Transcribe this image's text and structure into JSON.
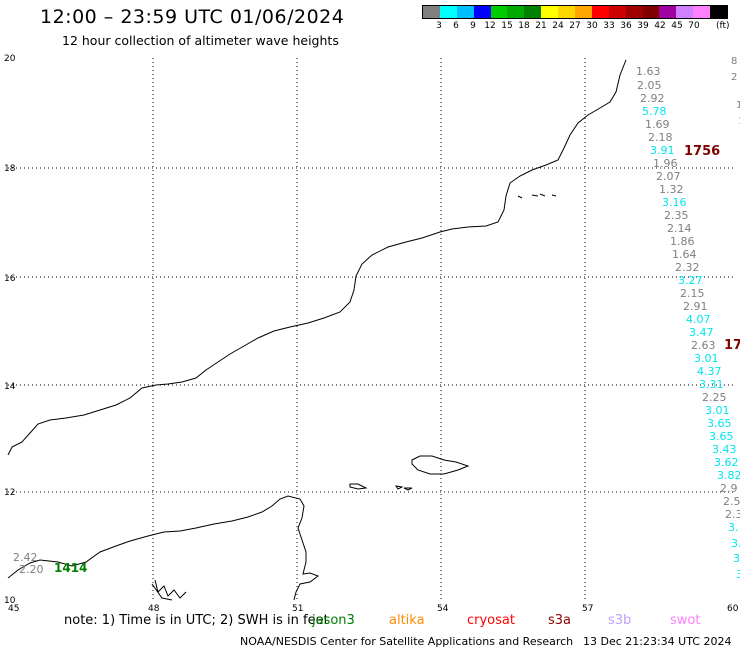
{
  "header": {
    "title": "12:00 – 23:59 UTC 01/06/2024",
    "subtitle": "12 hour collection of altimeter wave heights"
  },
  "legend": {
    "colors": [
      "#808080",
      "#00ffff",
      "#00bfff",
      "#0000ff",
      "#00cc00",
      "#00aa00",
      "#008000",
      "#ffff00",
      "#ffd700",
      "#ffa500",
      "#ff0000",
      "#cc0000",
      "#a00000",
      "#800000",
      "#a000a0",
      "#d080ff",
      "#ff80ff",
      "#000000"
    ],
    "labels": [
      "3",
      "6",
      "9",
      "12",
      "15",
      "18",
      "21",
      "24",
      "27",
      "30",
      "33",
      "36",
      "39",
      "42",
      "45",
      "70"
    ],
    "unit": "(ft)"
  },
  "axes": {
    "x_ticks": [
      "45",
      "48",
      "51",
      "54",
      "57",
      "60"
    ],
    "y_ticks": [
      "20",
      "18",
      "16",
      "14",
      "12",
      "10"
    ]
  },
  "wave_heights": [
    {
      "value": "1.63",
      "color": "#808080"
    },
    {
      "value": "2.05",
      "color": "#808080"
    },
    {
      "value": "2.92",
      "color": "#808080"
    },
    {
      "value": "5.78",
      "color": "#00e5ee"
    },
    {
      "value": "1.69",
      "color": "#808080"
    },
    {
      "value": "2.18",
      "color": "#808080"
    },
    {
      "value": "3.91",
      "color": "#00e5ee"
    },
    {
      "value": "1.96",
      "color": "#808080"
    },
    {
      "value": "2.07",
      "color": "#808080"
    },
    {
      "value": "1.32",
      "color": "#808080"
    },
    {
      "value": "3.16",
      "color": "#00e5ee"
    },
    {
      "value": "2.35",
      "color": "#808080"
    },
    {
      "value": "2.14",
      "color": "#808080"
    },
    {
      "value": "1.86",
      "color": "#808080"
    },
    {
      "value": "1.64",
      "color": "#808080"
    },
    {
      "value": "2.32",
      "color": "#808080"
    },
    {
      "value": "3.27",
      "color": "#00e5ee"
    },
    {
      "value": "2.15",
      "color": "#808080"
    },
    {
      "value": "2.91",
      "color": "#808080"
    },
    {
      "value": "4.07",
      "color": "#00e5ee"
    },
    {
      "value": "3.47",
      "color": "#00e5ee"
    },
    {
      "value": "2.63",
      "color": "#808080"
    },
    {
      "value": "3.01",
      "color": "#00e5ee"
    },
    {
      "value": "4.37",
      "color": "#00e5ee"
    },
    {
      "value": "3.31",
      "color": "#00e5ee"
    },
    {
      "value": "2.25",
      "color": "#808080"
    },
    {
      "value": "3.01",
      "color": "#00e5ee"
    },
    {
      "value": "3.65",
      "color": "#00e5ee"
    },
    {
      "value": "3.65",
      "color": "#00e5ee"
    },
    {
      "value": "3.43",
      "color": "#00e5ee"
    },
    {
      "value": "3.62",
      "color": "#00e5ee"
    },
    {
      "value": "3.82",
      "color": "#00e5ee"
    },
    {
      "value": "2.9",
      "color": "#808080"
    },
    {
      "value": "2.5",
      "color": "#808080"
    },
    {
      "value": "2.3",
      "color": "#808080"
    },
    {
      "value": "3.",
      "color": "#00e5ee"
    },
    {
      "value": "3.",
      "color": "#00e5ee"
    },
    {
      "value": "3.",
      "color": "#00e5ee"
    },
    {
      "value": "3.",
      "color": "#00e5ee"
    }
  ],
  "pass_times": [
    {
      "value": "1756",
      "color": "#800000"
    },
    {
      "value": "17",
      "color": "#800000"
    },
    {
      "value": "1414",
      "color": "#008000"
    }
  ],
  "left_values": [
    {
      "value": "2.42",
      "color": "#808080"
    },
    {
      "value": "2.20",
      "color": "#808080"
    }
  ],
  "edge_marks": [
    "8",
    "2",
    "1",
    "1"
  ],
  "notes": {
    "prefix": "note:  1) Time is in UTC;  2) SWH is in feet",
    "satellites": [
      {
        "name": "jason3",
        "color": "#008000"
      },
      {
        "name": "altika",
        "color": "#ff8c00"
      },
      {
        "name": "cryosat",
        "color": "#ff0000"
      },
      {
        "name": "s3a",
        "color": "#8b0000"
      },
      {
        "name": "s3b",
        "color": "#c0a0ff"
      },
      {
        "name": "swot",
        "color": "#ff80ff"
      }
    ]
  },
  "footer": {
    "credit": "NOAA/NESDIS Center for Satellite Applications and Research",
    "timestamp": "13 Dec 21:23:34 UTC 2024"
  }
}
